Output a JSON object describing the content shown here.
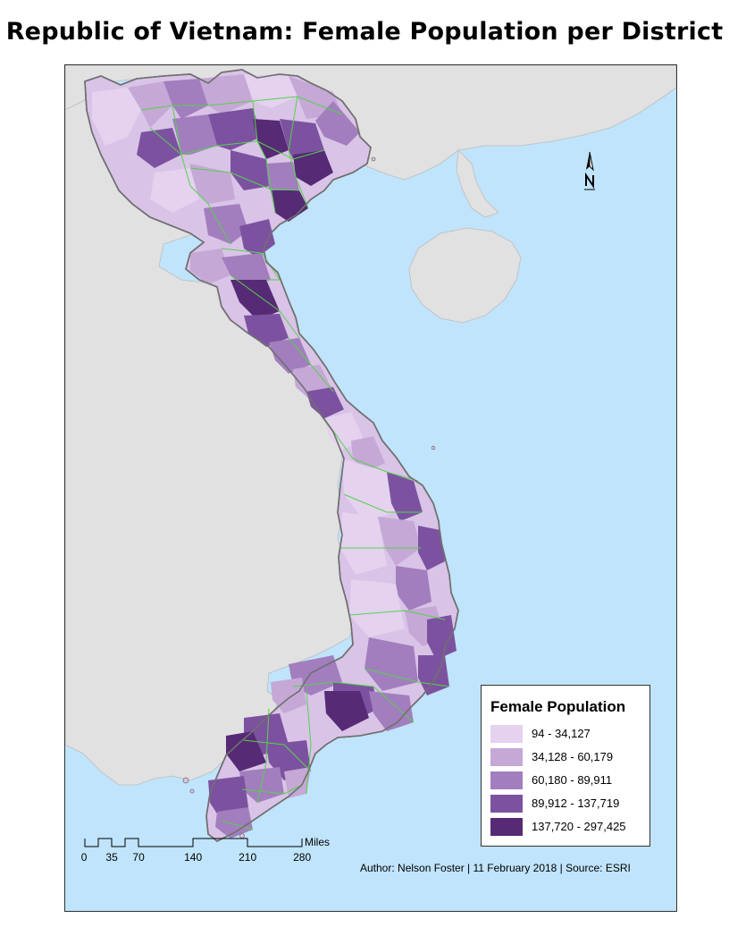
{
  "title": "Republic of Vietnam: Female Population per District",
  "legend": {
    "title": "Female Population",
    "classes": [
      {
        "label": "94 - 34,127",
        "color": "#e4d2ef"
      },
      {
        "label": "34,128 - 60,179",
        "color": "#c5a8d6"
      },
      {
        "label": "60,180 - 89,911",
        "color": "#a27ebe"
      },
      {
        "label": "89,912 - 137,719",
        "color": "#7c52a0"
      },
      {
        "label": "137,720 - 297,425",
        "color": "#562a75"
      }
    ]
  },
  "scale": {
    "ticks": [
      "0",
      "35",
      "70",
      "140",
      "210",
      "280"
    ],
    "unit": "Miles"
  },
  "credits": "Author: Nelson Foster | 11 February 2018 | Source: ESRI",
  "colors": {
    "sea": "#bfe4fb",
    "land_neighbor": "#e1e1e1",
    "province_border": "#55d24a",
    "country_outline": "#707070"
  }
}
